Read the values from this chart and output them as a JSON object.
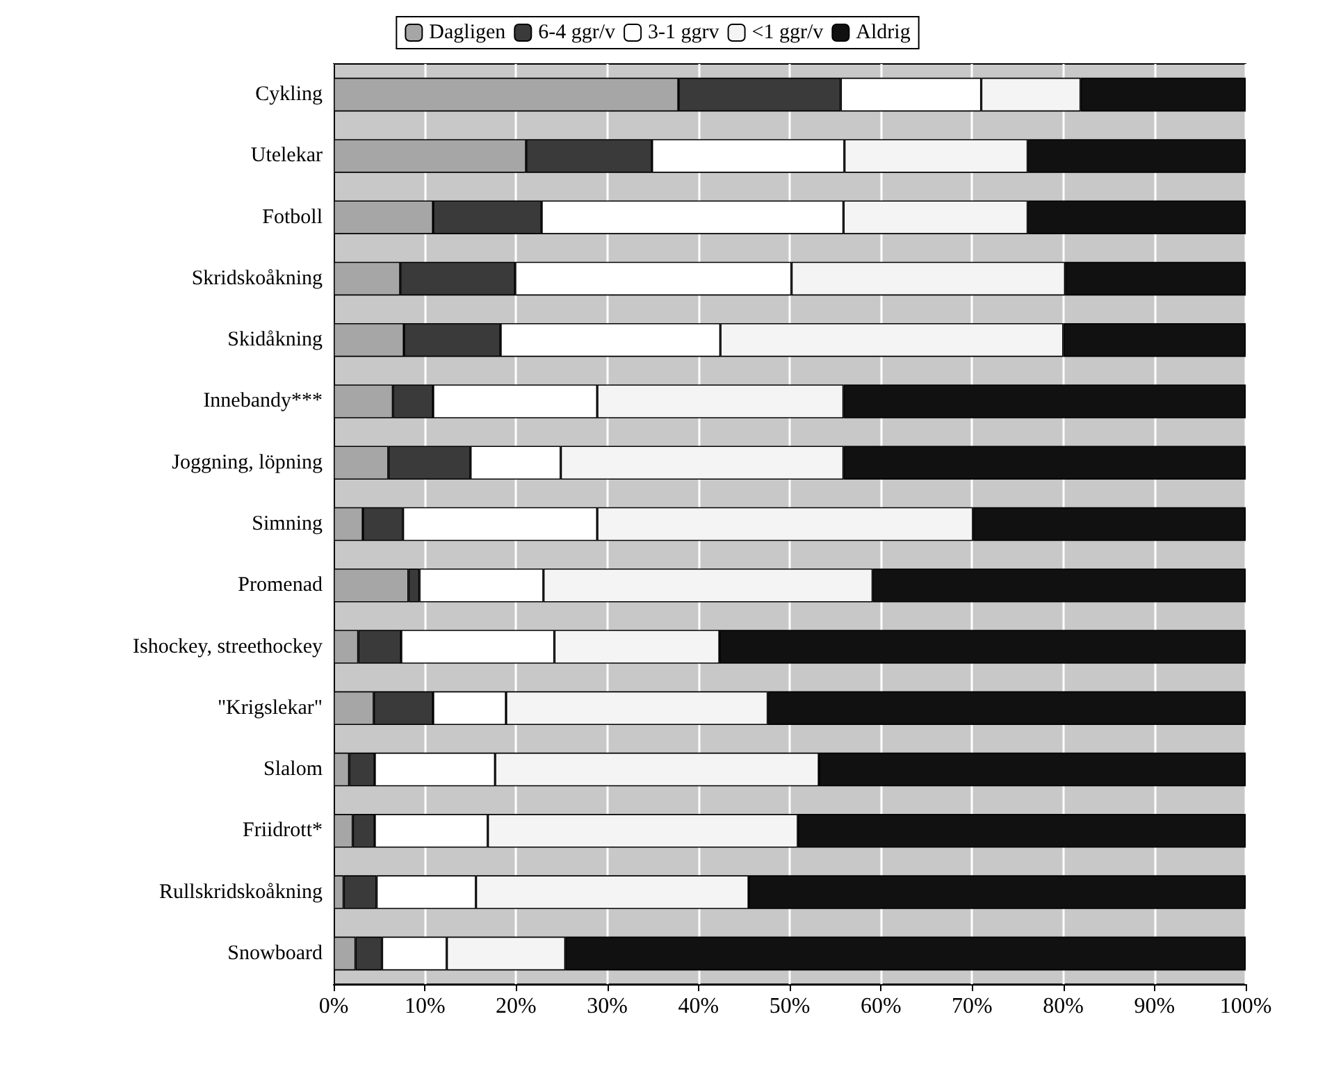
{
  "chart_data": {
    "type": "bar",
    "orientation": "horizontal",
    "stacked": true,
    "legend": "top",
    "grid": "x",
    "categories": [
      "Cykling",
      "Utelekar",
      "Fotboll",
      "Skridskoåkning",
      "Skidåkning",
      "Innebandy***",
      "Joggning, löpning",
      "Simning",
      "Promenad",
      "Ishockey, streethockey",
      "\"Krigslekar\"",
      "Slalom",
      "Friidrott*",
      "Rullskridskoåkning",
      "Snowboard"
    ],
    "series": [
      {
        "name": "Dagligen",
        "color": "#a6a6a6",
        "values": [
          37.8,
          21.1,
          10.9,
          7.3,
          7.7,
          6.5,
          6.0,
          3.2,
          8.2,
          2.7,
          4.4,
          1.7,
          2.1,
          1.1,
          2.4
        ]
      },
      {
        "name": "6-4 ggr/v",
        "color": "#3a3a3a",
        "values": [
          17.8,
          13.8,
          11.9,
          12.6,
          10.6,
          4.4,
          9.0,
          4.4,
          1.2,
          4.7,
          6.5,
          2.8,
          2.4,
          3.6,
          2.9
        ]
      },
      {
        "name": "3-1 ggrv",
        "color": "#ffffff",
        "values": [
          15.4,
          21.1,
          33.1,
          30.3,
          24.1,
          18.0,
          9.9,
          21.3,
          13.6,
          16.8,
          8.0,
          13.2,
          12.4,
          10.9,
          7.1
        ]
      },
      {
        "name": "<1 ggr/v",
        "color": "#f4f4f4",
        "values": [
          10.9,
          20.1,
          20.2,
          30.0,
          37.6,
          27.0,
          31.0,
          41.2,
          36.1,
          18.1,
          28.7,
          35.5,
          34.0,
          29.9,
          13.0
        ]
      },
      {
        "name": "Aldrig",
        "color": "#111111",
        "values": [
          18.1,
          23.9,
          23.9,
          19.8,
          20.0,
          44.1,
          44.1,
          29.9,
          40.9,
          57.7,
          52.4,
          46.8,
          49.1,
          54.5,
          74.6
        ]
      }
    ],
    "xlim": [
      0,
      100
    ],
    "xticks": [
      {
        "value": 0,
        "label": "0%"
      },
      {
        "value": 10,
        "label": "10%"
      },
      {
        "value": 20,
        "label": "20%"
      },
      {
        "value": 30,
        "label": "30%"
      },
      {
        "value": 40,
        "label": "40%"
      },
      {
        "value": 50,
        "label": "50%"
      },
      {
        "value": 60,
        "label": "60%"
      },
      {
        "value": 70,
        "label": "70%"
      },
      {
        "value": 80,
        "label": "80%"
      },
      {
        "value": 90,
        "label": "90%"
      },
      {
        "value": 100,
        "label": "100%"
      }
    ]
  }
}
